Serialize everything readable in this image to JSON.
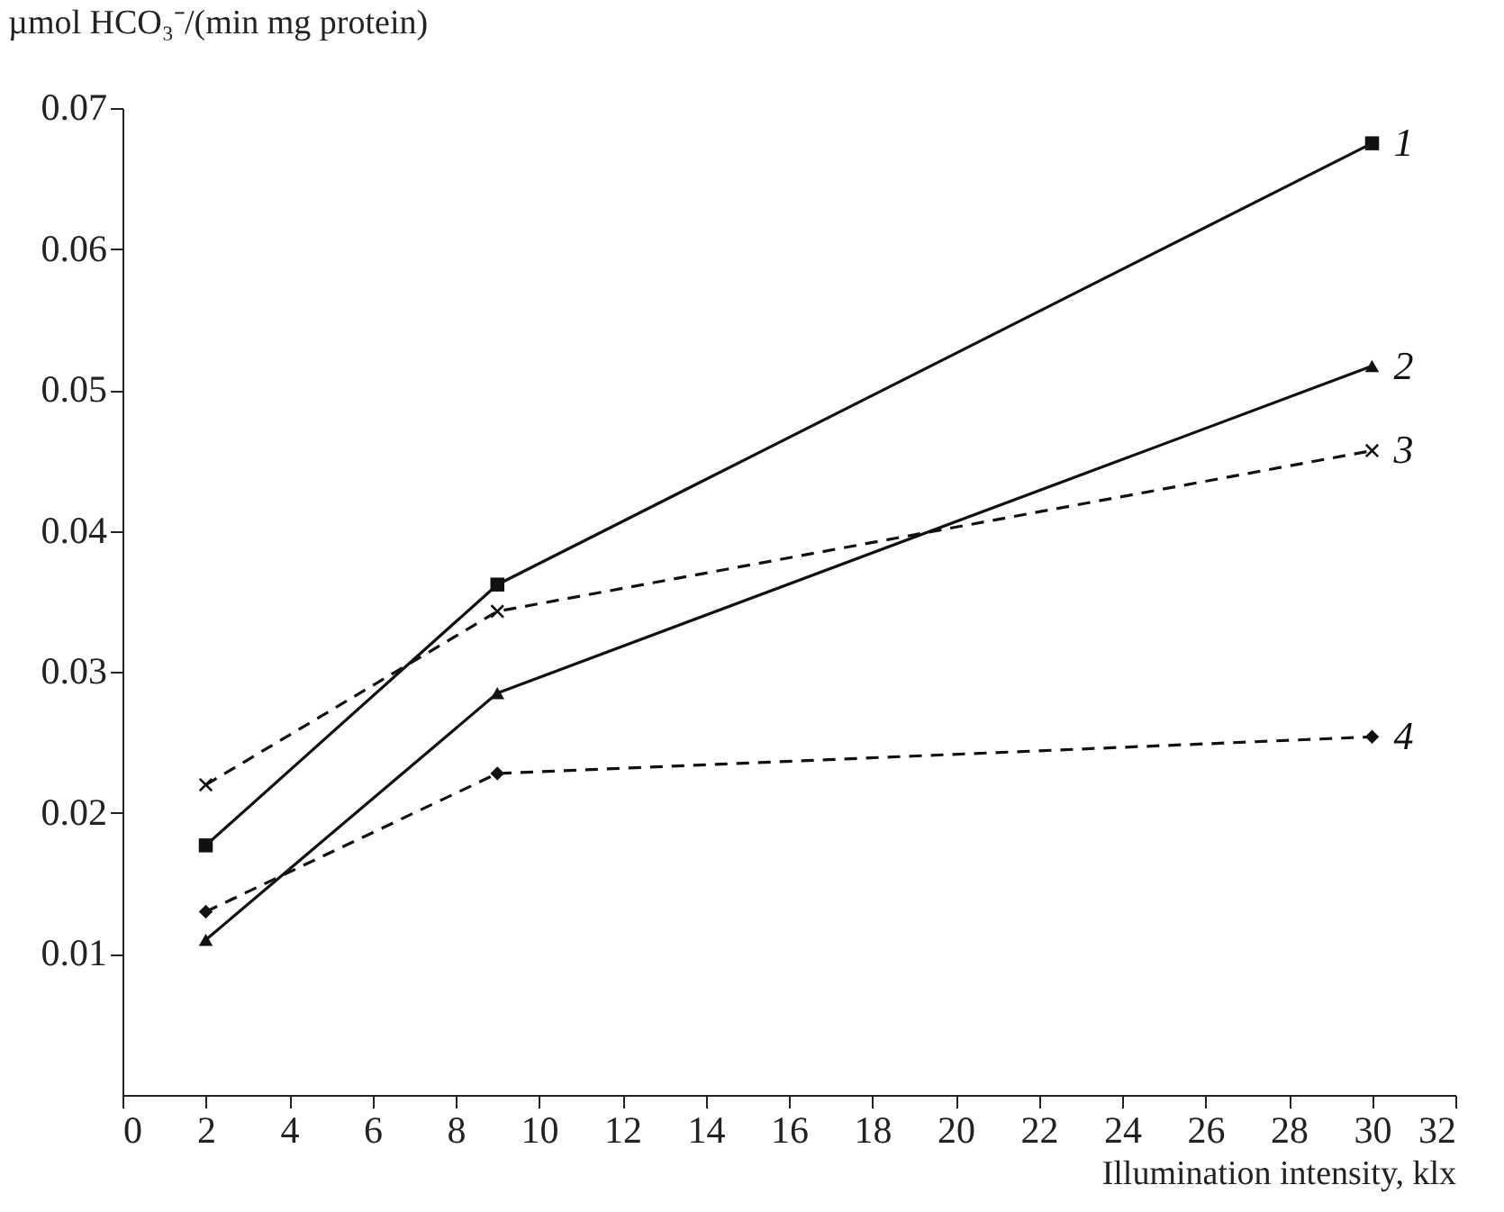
{
  "chart_data": {
    "type": "line",
    "xlabel": "Illumination intensity, klx",
    "ylabel": "µmol HCO₃⁻/(min mg protein)",
    "x": [
      2,
      9,
      30
    ],
    "series": [
      {
        "name": "1",
        "color": "#111111",
        "values": [
          0.0177,
          0.0362,
          0.0675
        ],
        "marker": "square",
        "line_style": "solid"
      },
      {
        "name": "2",
        "color": "#111111",
        "values": [
          0.011,
          0.0285,
          0.0517
        ],
        "marker": "triangle",
        "line_style": "solid"
      },
      {
        "name": "3",
        "color": "#111111",
        "values": [
          0.022,
          0.0343,
          0.0457
        ],
        "marker": "cross",
        "line_style": "dashed"
      },
      {
        "name": "4",
        "color": "#111111",
        "values": [
          0.013,
          0.0228,
          0.0254
        ],
        "marker": "diamond",
        "line_style": "dashed"
      }
    ],
    "xlim": [
      0,
      32
    ],
    "xticks": [
      0,
      2,
      4,
      6,
      8,
      10,
      12,
      14,
      16,
      18,
      20,
      22,
      24,
      26,
      28,
      30,
      32
    ],
    "ylim": [
      0,
      0.07
    ],
    "yticks": [
      0.01,
      0.02,
      0.03,
      0.04,
      0.05,
      0.06,
      0.07
    ],
    "grid": false
  }
}
